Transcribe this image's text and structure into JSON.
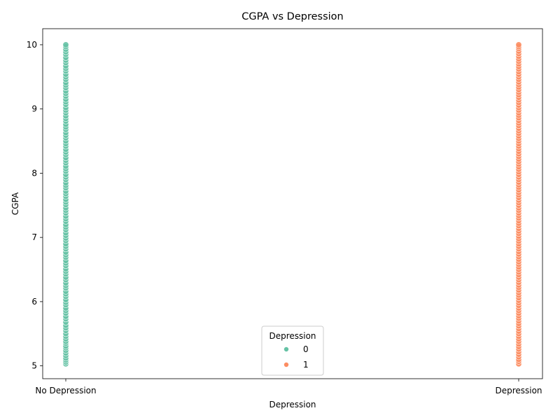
{
  "chart_data": {
    "type": "scatter",
    "title": "CGPA vs Depression",
    "xlabel": "Depression",
    "ylabel": "CGPA",
    "categories": [
      "No Depression",
      "Depression"
    ],
    "ylim": [
      4.8,
      10.25
    ],
    "yticks": [
      5,
      6,
      7,
      8,
      9,
      10
    ],
    "grid": false,
    "legend": {
      "title": "Depression",
      "placement": "lower-center",
      "entries": [
        "0",
        "1"
      ]
    },
    "series": [
      {
        "name": "0",
        "color": "#66c2a5",
        "x": "No Depression",
        "y": [
          5.03,
          5.06,
          5.09,
          5.12,
          5.16,
          5.2,
          5.24,
          5.28,
          5.31,
          5.35,
          5.38,
          5.42,
          5.46,
          5.5,
          5.55,
          5.59,
          5.63,
          5.68,
          5.73,
          5.77,
          5.82,
          5.86,
          5.9,
          5.95,
          5.99,
          6.03,
          6.08,
          6.12,
          6.16,
          6.21,
          6.25,
          6.29,
          6.34,
          6.38,
          6.43,
          6.47,
          6.51,
          6.56,
          6.6,
          6.64,
          6.69,
          6.73,
          6.77,
          6.82,
          6.86,
          6.9,
          6.95,
          6.99,
          7.03,
          7.07,
          7.12,
          7.16,
          7.2,
          7.25,
          7.29,
          7.33,
          7.38,
          7.42,
          7.46,
          7.51,
          7.55,
          7.59,
          7.64,
          7.68,
          7.72,
          7.77,
          7.81,
          7.85,
          7.9,
          7.94,
          7.98,
          8.03,
          8.07,
          8.11,
          8.16,
          8.2,
          8.24,
          8.29,
          8.33,
          8.37,
          8.42,
          8.46,
          8.5,
          8.55,
          8.59,
          8.63,
          8.68,
          8.72,
          8.76,
          8.81,
          8.85,
          8.89,
          8.94,
          8.98,
          9.02,
          9.07,
          9.11,
          9.15,
          9.2,
          9.24,
          9.28,
          9.33,
          9.37,
          9.41,
          9.46,
          9.5,
          9.54,
          9.59,
          9.63,
          9.67,
          9.72,
          9.76,
          9.8,
          9.85,
          9.89,
          9.93,
          9.97,
          10.0
        ]
      },
      {
        "name": "1",
        "color": "#fc8d62",
        "x": "Depression",
        "y": [
          5.03,
          5.07,
          5.1,
          5.14,
          5.18,
          5.22,
          5.26,
          5.3,
          5.34,
          5.38,
          5.42,
          5.46,
          5.5,
          5.54,
          5.58,
          5.62,
          5.66,
          5.7,
          5.74,
          5.78,
          5.82,
          5.86,
          5.9,
          5.94,
          5.98,
          6.02,
          6.06,
          6.1,
          6.14,
          6.18,
          6.22,
          6.26,
          6.3,
          6.34,
          6.38,
          6.42,
          6.46,
          6.5,
          6.54,
          6.58,
          6.62,
          6.66,
          6.7,
          6.74,
          6.78,
          6.82,
          6.86,
          6.9,
          6.94,
          6.98,
          7.02,
          7.06,
          7.1,
          7.14,
          7.18,
          7.22,
          7.26,
          7.3,
          7.34,
          7.38,
          7.42,
          7.46,
          7.5,
          7.54,
          7.58,
          7.62,
          7.66,
          7.7,
          7.74,
          7.78,
          7.82,
          7.86,
          7.9,
          7.94,
          7.98,
          8.02,
          8.06,
          8.1,
          8.14,
          8.18,
          8.22,
          8.26,
          8.3,
          8.34,
          8.38,
          8.42,
          8.46,
          8.5,
          8.54,
          8.58,
          8.62,
          8.66,
          8.7,
          8.74,
          8.78,
          8.82,
          8.86,
          8.9,
          8.94,
          8.98,
          9.02,
          9.06,
          9.1,
          9.14,
          9.18,
          9.22,
          9.26,
          9.3,
          9.34,
          9.38,
          9.42,
          9.46,
          9.5,
          9.54,
          9.58,
          9.62,
          9.66,
          9.7,
          9.74,
          9.78,
          9.82,
          9.86,
          9.9,
          9.94,
          9.97,
          10.0
        ]
      }
    ]
  }
}
